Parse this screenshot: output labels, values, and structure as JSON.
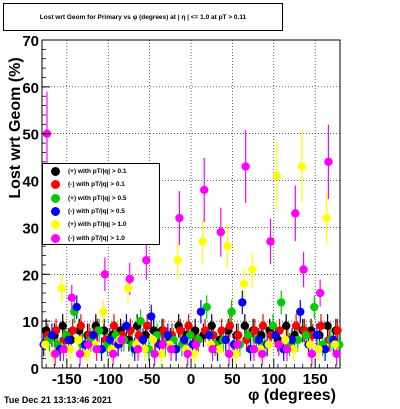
{
  "title": "Lost wrt Geom for Primary vs φ (degrees) at | η | <= 1.0 at pT > 0.11",
  "timestamp": "Tue Dec 21 13:13:46 2021",
  "chart_data": {
    "type": "scatter",
    "title": "Lost wrt Geom for Primary vs φ (degrees) at | η | <= 1.0 at pT > 0.11",
    "xlabel": "φ (degrees)",
    "ylabel": "Lost wrt Geom (%)",
    "xlim": [
      -180,
      180
    ],
    "ylim": [
      0,
      70
    ],
    "xticks": [
      -150,
      -100,
      -50,
      0,
      50,
      100,
      150
    ],
    "yticks": [
      0,
      10,
      20,
      30,
      40,
      50,
      60,
      70
    ],
    "grid": true,
    "legend_position": "left",
    "series": [
      {
        "name": "(+) with pT/|q| > 0.1",
        "color": "#000000",
        "x": [
          -175,
          -165,
          -155,
          -145,
          -135,
          -125,
          -115,
          -105,
          -95,
          -85,
          -75,
          -65,
          -55,
          -45,
          -35,
          -25,
          -15,
          -5,
          5,
          15,
          25,
          35,
          45,
          55,
          65,
          75,
          85,
          95,
          105,
          115,
          125,
          135,
          145,
          155,
          165,
          175
        ],
        "y": [
          8,
          7,
          9,
          6,
          8,
          7,
          9,
          8,
          7,
          8,
          6,
          9,
          7,
          8,
          8,
          6,
          9,
          7,
          8,
          7,
          9,
          6,
          8,
          7,
          9,
          8,
          7,
          8,
          6,
          9,
          7,
          8,
          8,
          7,
          9,
          8
        ]
      },
      {
        "name": "(-) with pT/|q| > 0.1",
        "color": "#ff0000",
        "x": [
          -173,
          -163,
          -153,
          -143,
          -133,
          -123,
          -113,
          -103,
          -93,
          -83,
          -73,
          -63,
          -53,
          -43,
          -33,
          -23,
          -13,
          -3,
          7,
          17,
          27,
          37,
          47,
          57,
          67,
          77,
          87,
          97,
          107,
          117,
          127,
          137,
          147,
          157,
          167,
          177
        ],
        "y": [
          7,
          8,
          6,
          8,
          9,
          7,
          8,
          6,
          9,
          7,
          8,
          7,
          9,
          6,
          8,
          7,
          8,
          9,
          6,
          8,
          7,
          8,
          9,
          7,
          6,
          8,
          9,
          7,
          8,
          6,
          9,
          8,
          7,
          9,
          6,
          8
        ]
      },
      {
        "name": "(+) with pT/|q| > 0.5",
        "color": "#00cc00",
        "x": [
          -171,
          -161,
          -151,
          -141,
          -131,
          -121,
          -111,
          -101,
          -91,
          -81,
          -71,
          -61,
          -51,
          -41,
          -31,
          -21,
          -11,
          -1,
          9,
          19,
          29,
          39,
          49,
          59,
          69,
          79,
          89,
          99,
          109,
          119,
          129,
          139,
          149,
          159,
          169,
          179
        ],
        "y": [
          6,
          5,
          7,
          12,
          5,
          6,
          8,
          5,
          7,
          6,
          5,
          10,
          4,
          7,
          5,
          6,
          5,
          7,
          6,
          13,
          5,
          6,
          12,
          5,
          7,
          6,
          5,
          9,
          14,
          5,
          6,
          7,
          13,
          5,
          6,
          5
        ]
      },
      {
        "name": "(-) with pT/|q| > 0.5",
        "color": "#0000ff",
        "x": [
          -178,
          -168,
          -158,
          -148,
          -138,
          -128,
          -118,
          -108,
          -98,
          -88,
          -78,
          -68,
          -58,
          -48,
          -38,
          -28,
          -18,
          -8,
          2,
          12,
          22,
          32,
          42,
          52,
          62,
          72,
          82,
          92,
          102,
          112,
          122,
          132,
          142,
          152,
          162,
          172
        ],
        "y": [
          5,
          7,
          4,
          6,
          13,
          5,
          7,
          4,
          6,
          5,
          9,
          4,
          6,
          11,
          5,
          7,
          4,
          6,
          5,
          12,
          7,
          4,
          6,
          5,
          14,
          4,
          6,
          5,
          7,
          4,
          6,
          12,
          5,
          7,
          4,
          6
        ]
      },
      {
        "name": "(+) with pT/|q| > 1.0",
        "color": "#ffff00",
        "x": [
          -176,
          -166,
          -156,
          -146,
          -136,
          -126,
          -116,
          -106,
          -96,
          -86,
          -76,
          -66,
          -56,
          -46,
          -36,
          -26,
          -16,
          -6,
          4,
          14,
          24,
          34,
          44,
          54,
          64,
          74,
          84,
          94,
          104,
          114,
          124,
          134,
          144,
          154,
          164,
          174
        ],
        "y": [
          5,
          3,
          17,
          4,
          6,
          3,
          5,
          12,
          4,
          6,
          17,
          5,
          4,
          6,
          3,
          5,
          23,
          4,
          3,
          27,
          5,
          4,
          26,
          3,
          18,
          21,
          4,
          5,
          41,
          6,
          4,
          43,
          5,
          4,
          32,
          5
        ]
      },
      {
        "name": "(-) with pT/|q| > 1.0",
        "color": "#ff00ff",
        "x": [
          -174,
          -164,
          -154,
          -144,
          -134,
          -124,
          -114,
          -104,
          -94,
          -84,
          -74,
          -64,
          -54,
          -44,
          -34,
          -24,
          -14,
          -4,
          6,
          16,
          26,
          36,
          46,
          56,
          66,
          76,
          86,
          96,
          106,
          116,
          126,
          136,
          146,
          156,
          166,
          176
        ],
        "y": [
          50,
          3,
          4,
          15,
          3,
          5,
          4,
          20,
          3,
          6,
          19,
          4,
          23,
          3,
          5,
          4,
          32,
          3,
          5,
          38,
          4,
          29,
          3,
          5,
          43,
          4,
          3,
          27,
          5,
          4,
          33,
          21,
          3,
          16,
          44,
          3
        ]
      }
    ]
  }
}
